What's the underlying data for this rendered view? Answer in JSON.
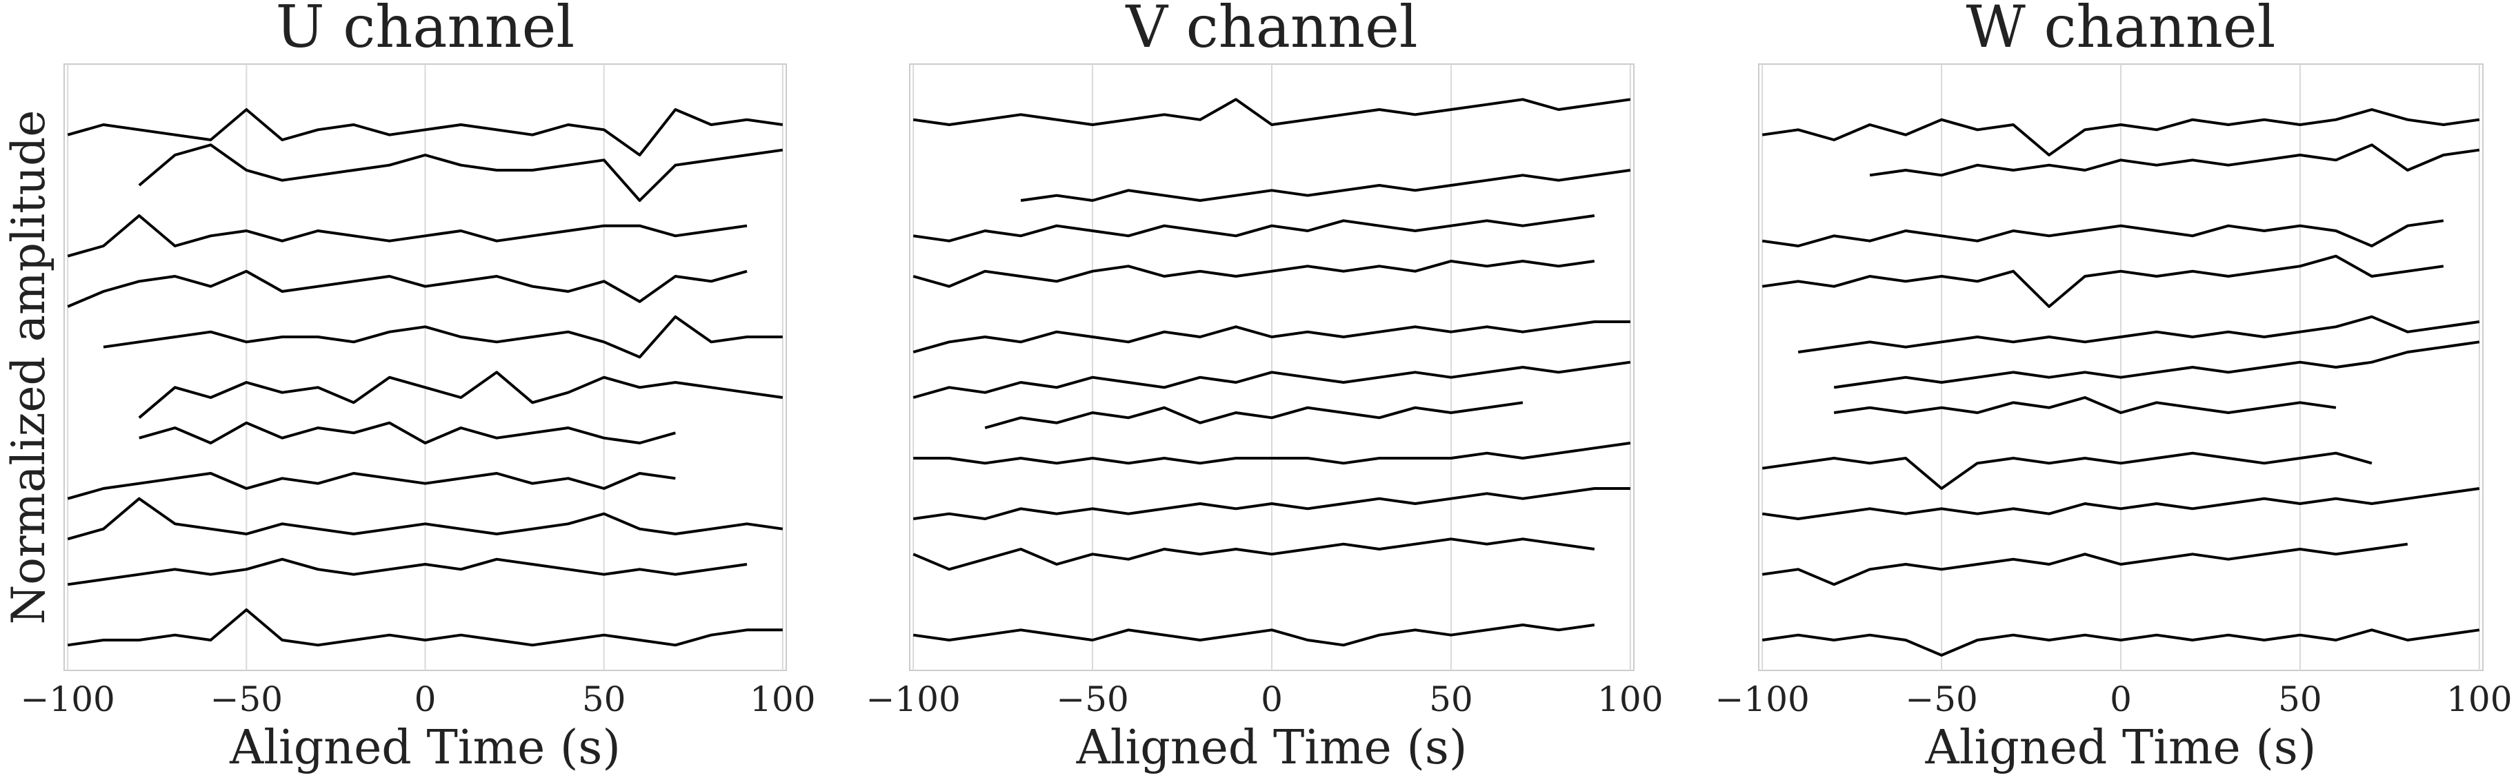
{
  "chart_data": [
    {
      "type": "line",
      "title": "U channel",
      "x_label": "Aligned Time (s)",
      "y_label": "Normalized amplitude",
      "x": [
        -100,
        -90,
        -80,
        -70,
        -60,
        -50,
        -40,
        -30,
        -20,
        -10,
        0,
        10,
        20,
        30,
        40,
        50,
        60,
        70,
        80,
        90,
        100
      ],
      "xlim": [
        -101,
        101
      ],
      "xticks": [
        {
          "value": -100,
          "label": "−100"
        },
        {
          "value": -50,
          "label": "−50"
        },
        0,
        50,
        100
      ],
      "ylim": [
        0,
        12
      ],
      "grid": true,
      "series": [
        {
          "color": "#000000",
          "values": [
            10.6,
            10.8,
            10.7,
            10.6,
            10.5,
            11.1,
            10.5,
            10.7,
            10.8,
            10.6,
            10.7,
            10.8,
            10.7,
            10.6,
            10.8,
            10.7,
            10.2,
            11.1,
            10.8,
            10.9,
            10.8
          ]
        },
        {
          "color": "#000000",
          "values": [
            null,
            null,
            9.6,
            10.2,
            10.4,
            9.9,
            9.7,
            9.8,
            9.9,
            10.0,
            10.2,
            10.0,
            9.9,
            9.9,
            10.0,
            10.1,
            9.3,
            10.0,
            10.1,
            10.2,
            10.3
          ]
        },
        {
          "color": "#000000",
          "values": [
            8.2,
            8.4,
            9.0,
            8.4,
            8.6,
            8.7,
            8.5,
            8.7,
            8.6,
            8.5,
            8.6,
            8.7,
            8.5,
            8.6,
            8.7,
            8.8,
            8.8,
            8.6,
            8.7,
            8.8,
            null
          ]
        },
        {
          "color": "#000000",
          "values": [
            7.2,
            7.5,
            7.7,
            7.8,
            7.6,
            7.9,
            7.5,
            7.6,
            7.7,
            7.8,
            7.6,
            7.7,
            7.8,
            7.6,
            7.5,
            7.7,
            7.3,
            7.8,
            7.7,
            7.9,
            null
          ]
        },
        {
          "color": "#000000",
          "values": [
            null,
            6.4,
            6.5,
            6.6,
            6.7,
            6.5,
            6.6,
            6.6,
            6.5,
            6.7,
            6.8,
            6.6,
            6.5,
            6.6,
            6.7,
            6.5,
            6.2,
            7.0,
            6.5,
            6.6,
            6.6
          ]
        },
        {
          "color": "#000000",
          "values": [
            null,
            null,
            5.0,
            5.6,
            5.4,
            5.7,
            5.5,
            5.6,
            5.3,
            5.8,
            5.6,
            5.4,
            5.9,
            5.3,
            5.5,
            5.8,
            5.6,
            5.7,
            5.6,
            5.5,
            5.4
          ]
        },
        {
          "color": "#000000",
          "values": [
            null,
            null,
            4.6,
            4.8,
            4.5,
            4.9,
            4.6,
            4.8,
            4.7,
            4.9,
            4.5,
            4.8,
            4.6,
            4.7,
            4.8,
            4.6,
            4.5,
            4.7,
            null,
            null,
            null
          ]
        },
        {
          "color": "#000000",
          "values": [
            3.4,
            3.6,
            3.7,
            3.8,
            3.9,
            3.6,
            3.8,
            3.7,
            3.9,
            3.8,
            3.7,
            3.8,
            3.9,
            3.7,
            3.8,
            3.6,
            3.9,
            3.8,
            null,
            null,
            null
          ]
        },
        {
          "color": "#000000",
          "values": [
            2.6,
            2.8,
            3.4,
            2.9,
            2.8,
            2.7,
            2.9,
            2.8,
            2.7,
            2.8,
            2.9,
            2.8,
            2.7,
            2.8,
            2.9,
            3.1,
            2.8,
            2.7,
            2.8,
            2.9,
            2.8
          ]
        },
        {
          "color": "#000000",
          "values": [
            1.7,
            1.8,
            1.9,
            2.0,
            1.9,
            2.0,
            2.2,
            2.0,
            1.9,
            2.0,
            2.1,
            2.0,
            2.2,
            2.1,
            2.0,
            1.9,
            2.0,
            1.9,
            2.0,
            2.1,
            null
          ]
        },
        {
          "color": "#000000",
          "values": [
            0.5,
            0.6,
            0.6,
            0.7,
            0.6,
            1.2,
            0.6,
            0.5,
            0.6,
            0.7,
            0.6,
            0.7,
            0.6,
            0.5,
            0.6,
            0.7,
            0.6,
            0.5,
            0.7,
            0.8,
            0.8
          ]
        }
      ]
    },
    {
      "type": "line",
      "title": "V channel",
      "x_label": "Aligned Time (s)",
      "x": [
        -100,
        -90,
        -80,
        -70,
        -60,
        -50,
        -40,
        -30,
        -20,
        -10,
        0,
        10,
        20,
        30,
        40,
        50,
        60,
        70,
        80,
        90,
        100
      ],
      "xlim": [
        -101,
        101
      ],
      "xticks": [
        {
          "value": -100,
          "label": "−100"
        },
        {
          "value": -50,
          "label": "−50"
        },
        0,
        50,
        100
      ],
      "ylim": [
        0,
        12
      ],
      "grid": true,
      "series": [
        {
          "color": "#000000",
          "values": [
            10.9,
            10.8,
            10.9,
            11.0,
            10.9,
            10.8,
            10.9,
            11.0,
            10.9,
            11.3,
            10.8,
            10.9,
            11.0,
            11.1,
            11.0,
            11.1,
            11.2,
            11.3,
            11.1,
            11.2,
            11.3
          ]
        },
        {
          "color": "#000000",
          "values": [
            null,
            null,
            null,
            9.3,
            9.4,
            9.3,
            9.5,
            9.4,
            9.3,
            9.4,
            9.5,
            9.4,
            9.5,
            9.6,
            9.5,
            9.6,
            9.7,
            9.8,
            9.7,
            9.8,
            9.9
          ]
        },
        {
          "color": "#000000",
          "values": [
            8.6,
            8.5,
            8.7,
            8.6,
            8.8,
            8.7,
            8.6,
            8.8,
            8.7,
            8.6,
            8.8,
            8.7,
            8.9,
            8.8,
            8.7,
            8.8,
            8.9,
            8.8,
            8.9,
            9.0,
            null
          ]
        },
        {
          "color": "#000000",
          "values": [
            7.8,
            7.6,
            7.9,
            7.8,
            7.7,
            7.9,
            8.0,
            7.8,
            7.9,
            7.8,
            7.9,
            8.0,
            7.9,
            8.0,
            7.9,
            8.1,
            8.0,
            8.1,
            8.0,
            8.1,
            null
          ]
        },
        {
          "color": "#000000",
          "values": [
            6.3,
            6.5,
            6.6,
            6.5,
            6.7,
            6.6,
            6.5,
            6.7,
            6.6,
            6.8,
            6.6,
            6.7,
            6.6,
            6.7,
            6.8,
            6.7,
            6.8,
            6.7,
            6.8,
            6.9,
            6.9
          ]
        },
        {
          "color": "#000000",
          "values": [
            5.4,
            5.6,
            5.5,
            5.7,
            5.6,
            5.8,
            5.7,
            5.6,
            5.8,
            5.7,
            5.9,
            5.8,
            5.7,
            5.8,
            5.9,
            5.8,
            5.9,
            6.0,
            5.9,
            6.0,
            6.1
          ]
        },
        {
          "color": "#000000",
          "values": [
            null,
            null,
            4.8,
            5.0,
            4.9,
            5.1,
            5.0,
            5.2,
            4.9,
            5.1,
            5.0,
            5.2,
            5.1,
            5.0,
            5.2,
            5.1,
            5.2,
            5.3,
            null,
            null,
            null
          ]
        },
        {
          "color": "#000000",
          "values": [
            4.2,
            4.2,
            4.1,
            4.2,
            4.1,
            4.2,
            4.1,
            4.2,
            4.1,
            4.2,
            4.2,
            4.2,
            4.1,
            4.2,
            4.2,
            4.2,
            4.3,
            4.2,
            4.3,
            4.4,
            4.5
          ]
        },
        {
          "color": "#000000",
          "values": [
            3.0,
            3.1,
            3.0,
            3.2,
            3.1,
            3.2,
            3.1,
            3.2,
            3.3,
            3.2,
            3.3,
            3.2,
            3.3,
            3.4,
            3.3,
            3.4,
            3.5,
            3.4,
            3.5,
            3.6,
            3.6
          ]
        },
        {
          "color": "#000000",
          "values": [
            2.3,
            2.0,
            2.2,
            2.4,
            2.1,
            2.3,
            2.2,
            2.4,
            2.3,
            2.4,
            2.3,
            2.4,
            2.5,
            2.4,
            2.5,
            2.6,
            2.5,
            2.6,
            2.5,
            2.4,
            null
          ]
        },
        {
          "color": "#000000",
          "values": [
            0.7,
            0.6,
            0.7,
            0.8,
            0.7,
            0.6,
            0.8,
            0.7,
            0.6,
            0.7,
            0.8,
            0.6,
            0.5,
            0.7,
            0.8,
            0.7,
            0.8,
            0.9,
            0.8,
            0.9,
            null
          ]
        }
      ]
    },
    {
      "type": "line",
      "title": "W channel",
      "x_label": "Aligned Time (s)",
      "x": [
        -100,
        -90,
        -80,
        -70,
        -60,
        -50,
        -40,
        -30,
        -20,
        -10,
        0,
        10,
        20,
        30,
        40,
        50,
        60,
        70,
        80,
        90,
        100
      ],
      "xlim": [
        -101,
        101
      ],
      "xticks": [
        {
          "value": -100,
          "label": "−100"
        },
        {
          "value": -50,
          "label": "−50"
        },
        0,
        50,
        100
      ],
      "ylim": [
        0,
        12
      ],
      "grid": true,
      "series": [
        {
          "color": "#000000",
          "values": [
            10.6,
            10.7,
            10.5,
            10.8,
            10.6,
            10.9,
            10.7,
            10.8,
            10.2,
            10.7,
            10.8,
            10.7,
            10.9,
            10.8,
            10.9,
            10.8,
            10.9,
            11.1,
            10.9,
            10.8,
            10.9
          ]
        },
        {
          "color": "#000000",
          "values": [
            null,
            null,
            null,
            9.8,
            9.9,
            9.8,
            10.0,
            9.9,
            10.0,
            9.9,
            10.1,
            10.0,
            10.1,
            10.0,
            10.1,
            10.2,
            10.1,
            10.4,
            9.9,
            10.2,
            10.3
          ]
        },
        {
          "color": "#000000",
          "values": [
            8.5,
            8.4,
            8.6,
            8.5,
            8.7,
            8.6,
            8.5,
            8.7,
            8.6,
            8.7,
            8.8,
            8.7,
            8.6,
            8.8,
            8.7,
            8.8,
            8.7,
            8.4,
            8.8,
            8.9,
            null
          ]
        },
        {
          "color": "#000000",
          "values": [
            7.6,
            7.7,
            7.6,
            7.8,
            7.7,
            7.8,
            7.7,
            7.9,
            7.2,
            7.8,
            7.9,
            7.8,
            7.9,
            7.8,
            7.9,
            8.0,
            8.2,
            7.8,
            7.9,
            8.0,
            null
          ]
        },
        {
          "color": "#000000",
          "values": [
            null,
            6.3,
            6.4,
            6.5,
            6.4,
            6.5,
            6.6,
            6.5,
            6.6,
            6.5,
            6.6,
            6.7,
            6.6,
            6.7,
            6.6,
            6.7,
            6.8,
            7.0,
            6.7,
            6.8,
            6.9
          ]
        },
        {
          "color": "#000000",
          "values": [
            null,
            null,
            5.6,
            5.7,
            5.8,
            5.7,
            5.8,
            5.9,
            5.8,
            5.9,
            5.8,
            5.9,
            6.0,
            5.9,
            6.0,
            6.1,
            6.0,
            6.1,
            6.3,
            6.4,
            6.5
          ]
        },
        {
          "color": "#000000",
          "values": [
            null,
            null,
            5.1,
            5.2,
            5.1,
            5.2,
            5.1,
            5.3,
            5.2,
            5.4,
            5.1,
            5.3,
            5.2,
            5.1,
            5.2,
            5.3,
            5.2,
            null,
            null,
            null,
            null
          ]
        },
        {
          "color": "#000000",
          "values": [
            4.0,
            4.1,
            4.2,
            4.1,
            4.2,
            3.6,
            4.1,
            4.2,
            4.1,
            4.2,
            4.1,
            4.2,
            4.3,
            4.2,
            4.1,
            4.2,
            4.3,
            4.1,
            null,
            null,
            null
          ]
        },
        {
          "color": "#000000",
          "values": [
            3.1,
            3.0,
            3.1,
            3.2,
            3.1,
            3.2,
            3.1,
            3.2,
            3.1,
            3.3,
            3.2,
            3.3,
            3.2,
            3.3,
            3.4,
            3.3,
            3.4,
            3.3,
            3.4,
            3.5,
            3.6
          ]
        },
        {
          "color": "#000000",
          "values": [
            1.9,
            2.0,
            1.7,
            2.0,
            2.1,
            2.0,
            2.1,
            2.2,
            2.1,
            2.3,
            2.1,
            2.2,
            2.3,
            2.2,
            2.3,
            2.4,
            2.3,
            2.4,
            2.5,
            null,
            null
          ]
        },
        {
          "color": "#000000",
          "values": [
            0.6,
            0.7,
            0.6,
            0.7,
            0.6,
            0.3,
            0.6,
            0.7,
            0.6,
            0.7,
            0.6,
            0.7,
            0.6,
            0.7,
            0.6,
            0.7,
            0.6,
            0.8,
            0.6,
            0.7,
            0.8
          ]
        }
      ]
    }
  ]
}
